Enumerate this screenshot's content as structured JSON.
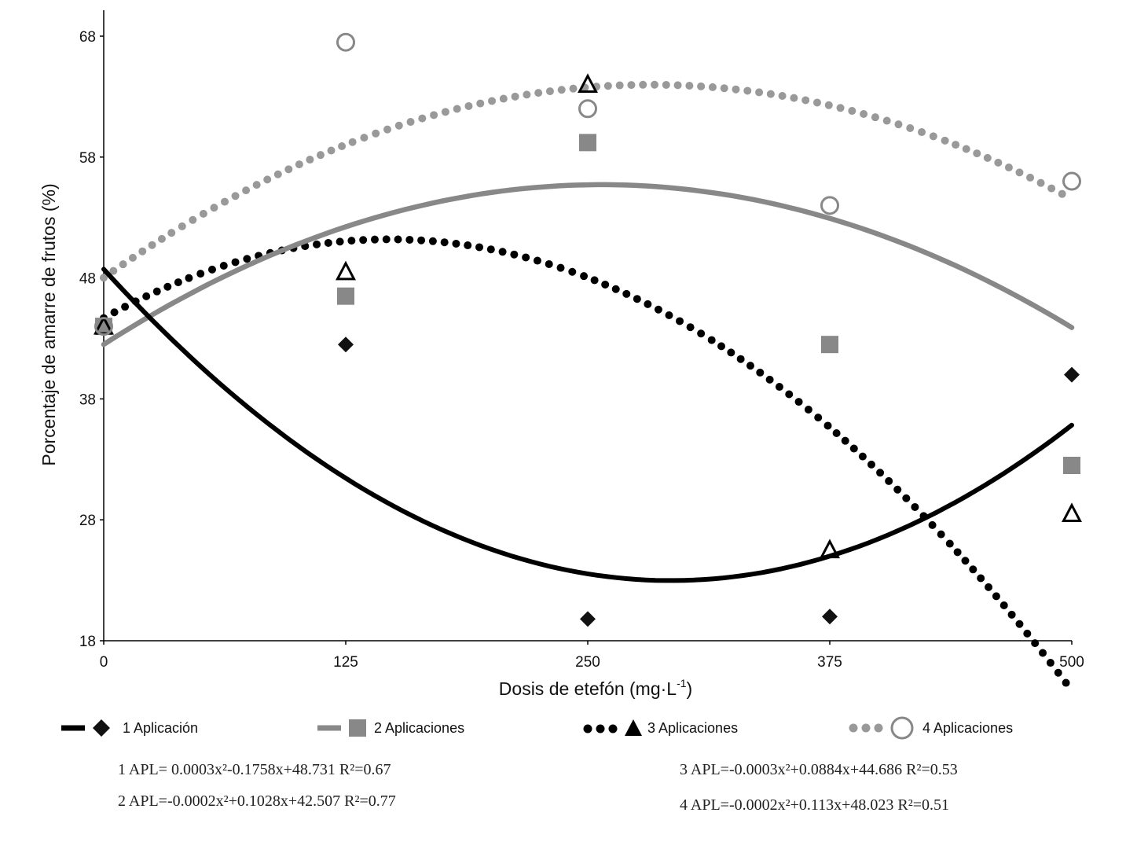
{
  "chart_data": {
    "type": "scatter",
    "xlabel": "Dosis de etefón (mg·L",
    "xlabel_sup": "-1",
    "xlabel_close": ")",
    "ylabel": "Porcentaje de amarre de frutos (%)",
    "xlim": [
      0,
      500
    ],
    "ylim": [
      18,
      70
    ],
    "xticks": [
      0,
      125,
      250,
      375,
      500
    ],
    "xtick_labels": [
      "0",
      "125",
      "250",
      "375",
      "500"
    ],
    "yticks": [
      18,
      28,
      38,
      48,
      58,
      68
    ],
    "ytick_labels": [
      "18",
      "28",
      "38",
      "48",
      "58",
      "68"
    ],
    "grid": false,
    "legend_position": "bottom",
    "series": [
      {
        "name": "1 Aplicación",
        "marker": "diamond",
        "color": "#000000",
        "trend_style": "solid",
        "x": [
          0,
          125,
          250,
          375,
          500
        ],
        "values": [
          44,
          42.5,
          19.8,
          20,
          40
        ],
        "fit": [
          0.0003,
          -0.1758,
          48.731
        ]
      },
      {
        "name": "2 Aplicaciones",
        "marker": "square",
        "color": "#888888",
        "trend_style": "solid",
        "x": [
          0,
          125,
          250,
          375,
          500
        ],
        "values": [
          44,
          46.5,
          59.2,
          42.5,
          32.5
        ],
        "fit": [
          -0.0002,
          0.1028,
          42.507
        ]
      },
      {
        "name": "3 Aplicaciones",
        "marker": "triangle",
        "color": "#000000",
        "trend_style": "dotted",
        "x": [
          0,
          125,
          250,
          375,
          500
        ],
        "values": [
          44,
          48.5,
          64,
          25.5,
          28.5
        ],
        "fit": [
          -0.0003,
          0.0884,
          44.686
        ]
      },
      {
        "name": "4 Aplicaciones",
        "marker": "circle",
        "color": "#888888",
        "trend_style": "dotted",
        "x": [
          0,
          125,
          250,
          375,
          500
        ],
        "values": [
          44,
          67.5,
          62,
          54,
          56
        ],
        "fit": [
          -0.0002,
          0.113,
          48.023
        ]
      }
    ],
    "equations": [
      "1 APL= 0.0003x²-0.1758x+48.731  R²=0.67",
      "2 APL=-0.0002x²+0.1028x+42.507  R²=0.77",
      "3 APL=-0.0003x²+0.0884x+44.686  R²=0.53",
      "4 APL=-0.0002x²+0.113x+48.023  R²=0.51"
    ]
  }
}
